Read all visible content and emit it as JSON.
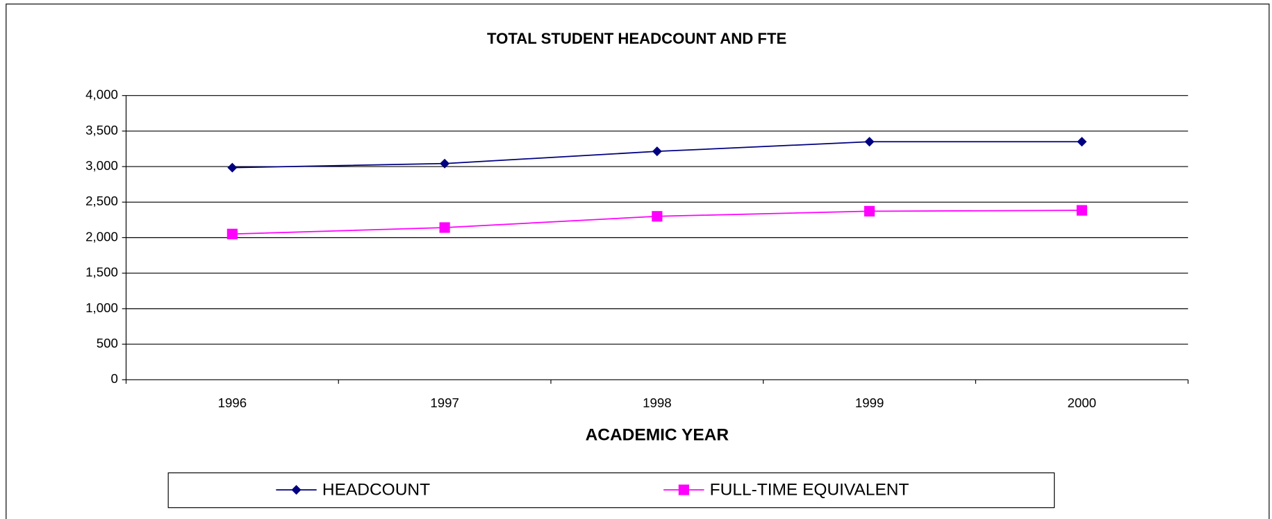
{
  "chart_data": {
    "type": "line",
    "title": "TOTAL STUDENT HEADCOUNT AND FTE",
    "x_label": "ACADEMIC YEAR",
    "categories": [
      "1996",
      "1997",
      "1998",
      "1999",
      "2000"
    ],
    "series": [
      {
        "name": "HEADCOUNT",
        "color": "#000080",
        "marker": "diamond",
        "values": [
          2985,
          3043,
          3214,
          3350,
          3350
        ]
      },
      {
        "name": "FULL-TIME EQUIVALENT",
        "color": "#ff00ff",
        "marker": "square",
        "values": [
          2051,
          2142,
          2300,
          2372,
          2384
        ]
      }
    ],
    "ylim": [
      0,
      4000
    ],
    "yticks": [
      0,
      500,
      {
        "value": 1000,
        "label": "1,000"
      },
      {
        "value": 1500,
        "label": "1,500"
      },
      {
        "value": 2000,
        "label": "2,000"
      },
      {
        "value": 2500,
        "label": "2,500"
      },
      {
        "value": 3000,
        "label": "3,000"
      },
      {
        "value": 3500,
        "label": "3,500"
      },
      {
        "value": 4000,
        "label": "4,000"
      }
    ],
    "grid": true,
    "legend": "bottom"
  }
}
